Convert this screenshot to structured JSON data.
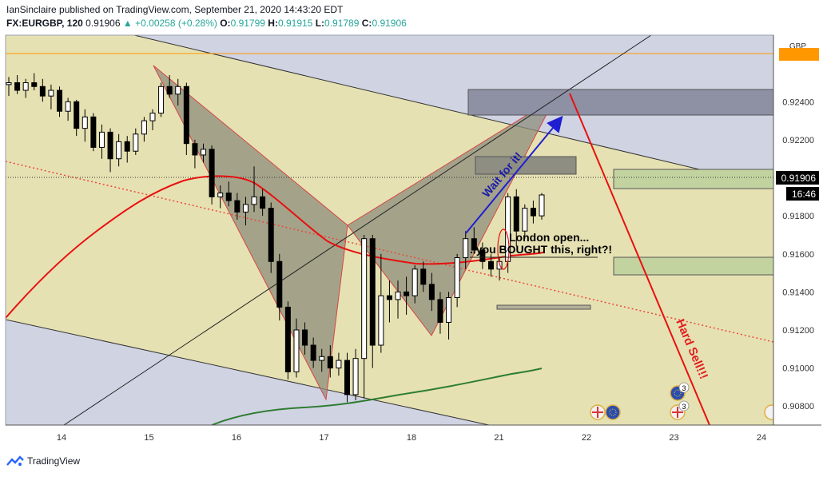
{
  "header": {
    "publisher_line": "IanSinclaire published on TradingView.com, September 21, 2020 14:43:20 EDT",
    "symbol": "FX:EURGBP, 120",
    "price": "0.91906",
    "change": "+0.00258 (+0.28%)",
    "open_label": "O:",
    "open": "0.91799",
    "high_label": "H:",
    "high": "0.91915",
    "low_label": "L:",
    "low": "0.91789",
    "close_label": "C:",
    "close": "0.91906"
  },
  "footer": {
    "brand": "TradingView"
  },
  "chart_data": {
    "type": "candlestick",
    "currency_label": "GBP",
    "price_badge": "0.91906",
    "time_badge": "16:46",
    "ylim": [
      0.907,
      0.9275
    ],
    "y_ticks": [
      "0.92400",
      "0.92200",
      "0.92000",
      "0.91800",
      "0.91600",
      "0.91400",
      "0.91200",
      "0.91000",
      "0.90800"
    ],
    "x_ticks": [
      "14",
      "15",
      "16",
      "17",
      "18",
      "21",
      "22",
      "23",
      "24"
    ],
    "annotations": [
      {
        "text": "Wait for it!",
        "color": "#1a1aa8"
      },
      {
        "text": "London open...",
        "color": "#000000"
      },
      {
        "text": "..you BOUGHT this, right?!",
        "color": "#000000"
      },
      {
        "text": "Hard Sell!!!",
        "color": "#e01e1e"
      }
    ],
    "event_badges": [
      "3",
      "3"
    ],
    "colors": {
      "up": "#ffffff",
      "down": "#000000",
      "ma_red": "#e81010",
      "ma_green": "#2e7d32",
      "orange_line": "#ff9800"
    },
    "candles": [
      [
        0.9249,
        0.9253,
        0.9243,
        0.925
      ],
      [
        0.925,
        0.9254,
        0.9244,
        0.9246
      ],
      [
        0.9246,
        0.9252,
        0.9242,
        0.925
      ],
      [
        0.925,
        0.9255,
        0.9246,
        0.9248
      ],
      [
        0.9248,
        0.9252,
        0.924,
        0.9243
      ],
      [
        0.9243,
        0.9249,
        0.9236,
        0.9246
      ],
      [
        0.9246,
        0.9248,
        0.9232,
        0.9235
      ],
      [
        0.9235,
        0.9242,
        0.923,
        0.924
      ],
      [
        0.924,
        0.9241,
        0.9222,
        0.9226
      ],
      [
        0.9226,
        0.9236,
        0.9219,
        0.9232
      ],
      [
        0.9232,
        0.9234,
        0.9214,
        0.9216
      ],
      [
        0.9216,
        0.9228,
        0.921,
        0.9224
      ],
      [
        0.9224,
        0.9226,
        0.9203,
        0.921
      ],
      [
        0.921,
        0.9223,
        0.9206,
        0.9219
      ],
      [
        0.9219,
        0.9222,
        0.9208,
        0.9214
      ],
      [
        0.9214,
        0.9226,
        0.9212,
        0.9223
      ],
      [
        0.9223,
        0.9232,
        0.9219,
        0.923
      ],
      [
        0.923,
        0.9236,
        0.9225,
        0.9234
      ],
      [
        0.9234,
        0.925,
        0.9232,
        0.9248
      ],
      [
        0.9248,
        0.9254,
        0.9242,
        0.9244
      ],
      [
        0.9244,
        0.9252,
        0.9238,
        0.9248
      ],
      [
        0.9248,
        0.925,
        0.9212,
        0.9218
      ],
      [
        0.9218,
        0.922,
        0.9205,
        0.9212
      ],
      [
        0.9212,
        0.9218,
        0.9208,
        0.9215
      ],
      [
        0.9215,
        0.9217,
        0.9186,
        0.919
      ],
      [
        0.919,
        0.9196,
        0.9184,
        0.9192
      ],
      [
        0.9192,
        0.9198,
        0.9185,
        0.9188
      ],
      [
        0.9188,
        0.9192,
        0.9178,
        0.9182
      ],
      [
        0.9182,
        0.919,
        0.9175,
        0.9186
      ],
      [
        0.9186,
        0.9206,
        0.9182,
        0.919
      ],
      [
        0.919,
        0.9194,
        0.918,
        0.9184
      ],
      [
        0.9184,
        0.9187,
        0.915,
        0.9156
      ],
      [
        0.9156,
        0.916,
        0.9125,
        0.9132
      ],
      [
        0.9132,
        0.9135,
        0.9094,
        0.9098
      ],
      [
        0.9098,
        0.9126,
        0.9095,
        0.912
      ],
      [
        0.912,
        0.9124,
        0.9107,
        0.9112
      ],
      [
        0.9112,
        0.9116,
        0.91,
        0.9104
      ],
      [
        0.9104,
        0.911,
        0.9098,
        0.9106
      ],
      [
        0.9106,
        0.9112,
        0.9095,
        0.91
      ],
      [
        0.91,
        0.9108,
        0.9096,
        0.9104
      ],
      [
        0.9104,
        0.9108,
        0.9082,
        0.9086
      ],
      [
        0.9086,
        0.911,
        0.9083,
        0.9105
      ],
      [
        0.9105,
        0.917,
        0.9084,
        0.9168
      ],
      [
        0.9168,
        0.917,
        0.91,
        0.9112
      ],
      [
        0.9112,
        0.916,
        0.9108,
        0.9138
      ],
      [
        0.9138,
        0.9146,
        0.9124,
        0.9136
      ],
      [
        0.9136,
        0.9146,
        0.9126,
        0.914
      ],
      [
        0.914,
        0.9148,
        0.9128,
        0.9138
      ],
      [
        0.9138,
        0.9154,
        0.9134,
        0.9152
      ],
      [
        0.9152,
        0.9156,
        0.914,
        0.9144
      ],
      [
        0.9144,
        0.915,
        0.913,
        0.9136
      ],
      [
        0.9136,
        0.914,
        0.9118,
        0.9124
      ],
      [
        0.9124,
        0.914,
        0.9115,
        0.9137
      ],
      [
        0.9137,
        0.916,
        0.9132,
        0.9158
      ],
      [
        0.9158,
        0.9172,
        0.9152,
        0.9168
      ],
      [
        0.9168,
        0.9174,
        0.916,
        0.9162
      ],
      [
        0.9162,
        0.9166,
        0.9152,
        0.9156
      ],
      [
        0.9156,
        0.916,
        0.9148,
        0.9152
      ],
      [
        0.9152,
        0.9158,
        0.9146,
        0.9156
      ],
      [
        0.9156,
        0.9192,
        0.915,
        0.919
      ],
      [
        0.919,
        0.9194,
        0.9164,
        0.9172
      ],
      [
        0.9172,
        0.9186,
        0.9168,
        0.9184
      ],
      [
        0.9184,
        0.9188,
        0.9176,
        0.918
      ],
      [
        0.918,
        0.9192,
        0.9178,
        0.9191
      ]
    ]
  }
}
